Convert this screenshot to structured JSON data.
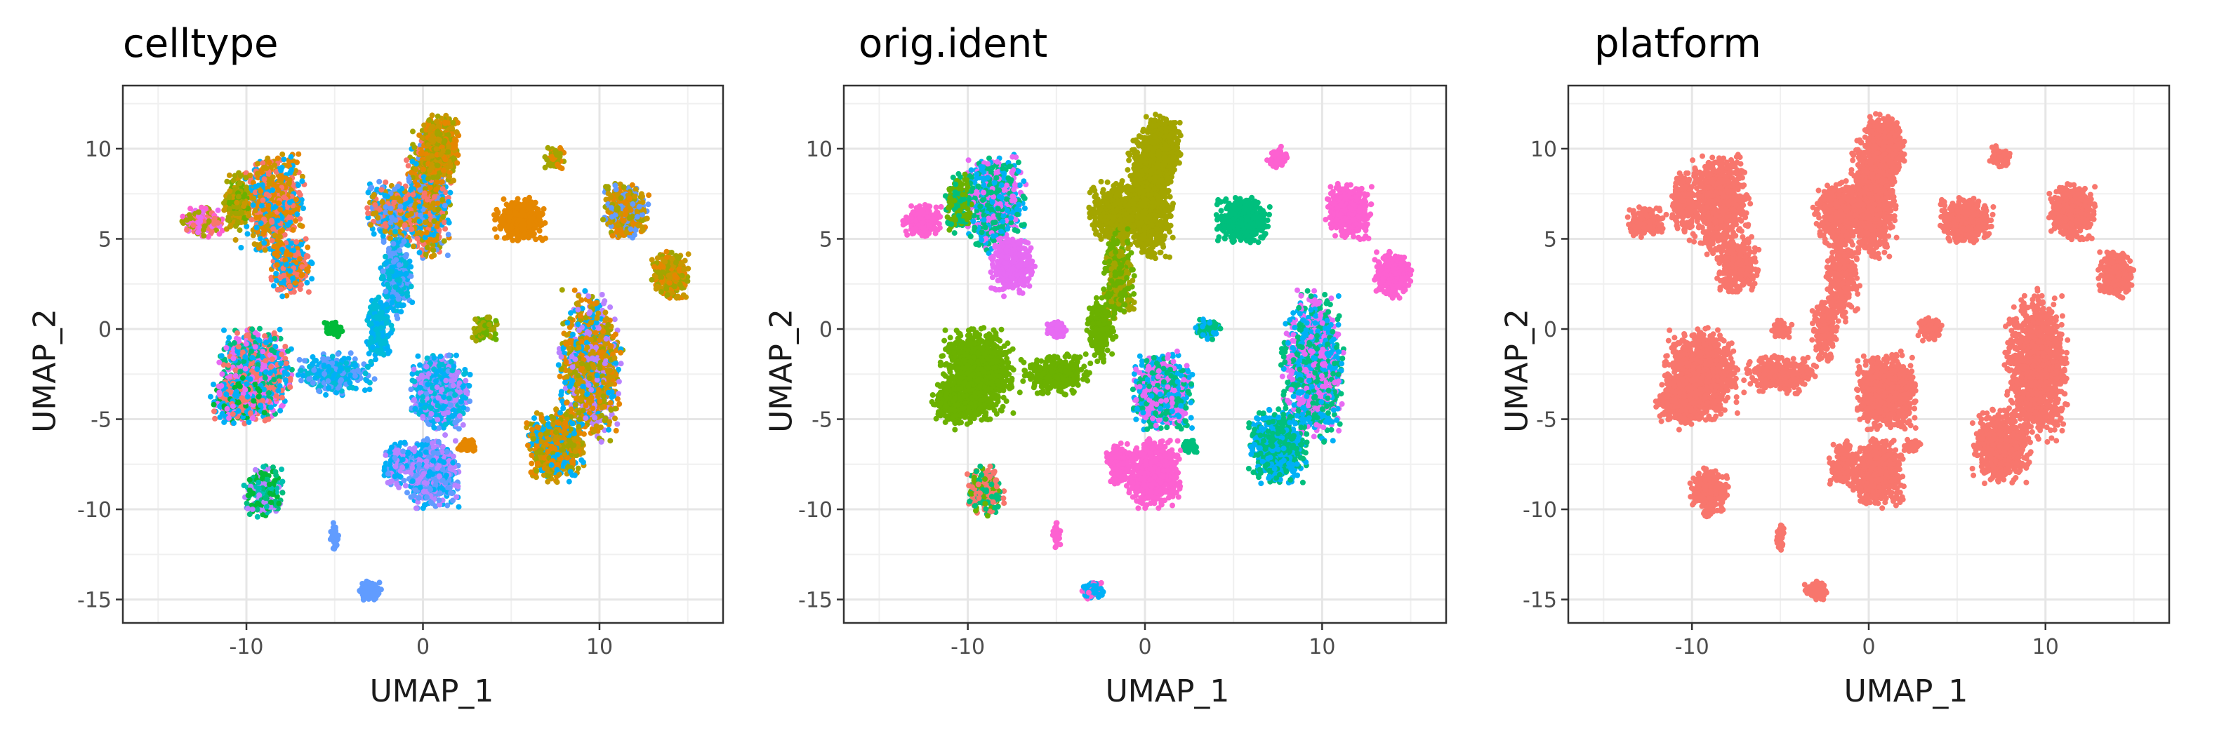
{
  "chart_data": [
    {
      "type": "scatter",
      "title": "celltype",
      "xlabel": "UMAP_1",
      "ylabel": "UMAP_2",
      "xlim": [
        -17,
        17
      ],
      "ylim": [
        -16.3,
        13.5
      ],
      "xticks": [
        -10,
        0,
        10
      ],
      "yticks": [
        -15,
        -10,
        -5,
        0,
        5,
        10
      ],
      "xtick_labels": [
        "-10",
        "0",
        "10"
      ],
      "ytick_labels": [
        "-15",
        "-10",
        "-5",
        "0",
        "5",
        "10"
      ],
      "grid": true,
      "legend": "none",
      "palette": [
        "#F8766D",
        "#E58700",
        "#C99800",
        "#A3A500",
        "#6BB100",
        "#00BA38",
        "#00BF7D",
        "#00C0AF",
        "#00BCD8",
        "#00B0F6",
        "#619CFF",
        "#B983FF",
        "#E76BF3",
        "#FD61D1"
      ],
      "clusters": [
        {
          "x": 0.3,
          "y": 7.5,
          "palette": [
            3,
            2,
            1,
            0,
            9,
            10
          ]
        },
        {
          "x": 1.0,
          "y": 10.0,
          "palette": [
            3,
            2,
            1
          ]
        },
        {
          "x": -1.5,
          "y": 6.5,
          "palette": [
            2,
            10,
            0,
            9
          ]
        },
        {
          "x": -1.5,
          "y": 3.0,
          "palette": [
            9,
            10,
            8
          ]
        },
        {
          "x": -2.5,
          "y": 0.0,
          "palette": [
            9,
            8
          ]
        },
        {
          "x": -5.0,
          "y": -2.5,
          "palette": [
            9,
            8,
            10
          ]
        },
        {
          "x": -8.5,
          "y": 7.0,
          "palette": [
            0,
            9,
            1,
            2
          ]
        },
        {
          "x": -7.5,
          "y": 3.5,
          "palette": [
            0,
            1,
            9
          ]
        },
        {
          "x": -9.5,
          "y": -2.5,
          "palette": [
            0,
            9,
            12,
            6
          ]
        },
        {
          "x": -10.5,
          "y": -4.0,
          "palette": [
            0,
            9,
            12,
            5
          ]
        },
        {
          "x": -12.5,
          "y": 6.0,
          "palette": [
            0,
            13,
            12,
            3
          ]
        },
        {
          "x": -10.5,
          "y": 7.0,
          "palette": [
            3,
            2,
            4
          ]
        },
        {
          "x": -9.0,
          "y": -9.0,
          "palette": [
            6,
            5,
            7,
            11
          ]
        },
        {
          "x": -5.0,
          "y": 0.0,
          "palette": [
            5
          ]
        },
        {
          "x": 1.0,
          "y": -3.5,
          "palette": [
            9,
            8,
            11,
            10
          ]
        },
        {
          "x": 3.5,
          "y": 0.0,
          "palette": [
            3,
            4
          ]
        },
        {
          "x": 0.5,
          "y": -8.0,
          "palette": [
            9,
            11,
            10
          ]
        },
        {
          "x": 2.5,
          "y": -6.5,
          "palette": [
            1
          ]
        },
        {
          "x": -1.5,
          "y": -7.5,
          "palette": [
            9,
            10,
            11
          ]
        },
        {
          "x": 5.5,
          "y": 6.0,
          "palette": [
            1
          ]
        },
        {
          "x": 7.5,
          "y": 9.5,
          "palette": [
            3,
            1
          ]
        },
        {
          "x": 11.5,
          "y": 6.5,
          "palette": [
            1,
            2,
            3,
            10
          ]
        },
        {
          "x": 14.0,
          "y": 3.0,
          "palette": [
            1,
            2,
            3
          ]
        },
        {
          "x": 9.5,
          "y": -2.0,
          "palette": [
            1,
            2,
            3,
            9,
            11
          ]
        },
        {
          "x": 7.5,
          "y": -6.5,
          "palette": [
            1,
            2,
            3,
            9
          ]
        },
        {
          "x": -3.0,
          "y": -14.5,
          "palette": [
            10
          ]
        },
        {
          "x": -5.0,
          "y": -11.5,
          "palette": [
            10
          ]
        }
      ]
    },
    {
      "type": "scatter",
      "title": "orig.ident",
      "xlabel": "UMAP_1",
      "ylabel": "UMAP_2",
      "xlim": [
        -17,
        17
      ],
      "ylim": [
        -16.3,
        13.5
      ],
      "xticks": [
        -10,
        0,
        10
      ],
      "yticks": [
        -15,
        -10,
        -5,
        0,
        5,
        10
      ],
      "xtick_labels": [
        "-10",
        "0",
        "10"
      ],
      "ytick_labels": [
        "-15",
        "-10",
        "-5",
        "0",
        "5",
        "10"
      ],
      "grid": true,
      "legend": "none",
      "palette": [
        "#F8766D",
        "#A3A500",
        "#00BF7D",
        "#00B0F6",
        "#E76BF3",
        "#FD61D1",
        "#6BB100"
      ],
      "clusters": [
        {
          "x": 0.3,
          "y": 7.5,
          "palette": [
            1
          ]
        },
        {
          "x": 1.0,
          "y": 10.0,
          "palette": [
            1
          ]
        },
        {
          "x": -1.5,
          "y": 6.5,
          "palette": [
            1
          ]
        },
        {
          "x": -1.5,
          "y": 3.0,
          "palette": [
            1,
            6
          ]
        },
        {
          "x": -2.5,
          "y": 0.0,
          "palette": [
            6
          ]
        },
        {
          "x": -5.0,
          "y": -2.5,
          "palette": [
            6
          ]
        },
        {
          "x": -8.5,
          "y": 7.0,
          "palette": [
            4,
            3,
            2
          ]
        },
        {
          "x": -7.5,
          "y": 3.5,
          "palette": [
            4
          ]
        },
        {
          "x": -9.5,
          "y": -2.5,
          "palette": [
            6
          ]
        },
        {
          "x": -10.5,
          "y": -4.0,
          "palette": [
            6
          ]
        },
        {
          "x": -12.5,
          "y": 6.0,
          "palette": [
            5
          ]
        },
        {
          "x": -10.5,
          "y": 7.0,
          "palette": [
            6,
            2
          ]
        },
        {
          "x": -9.0,
          "y": -9.0,
          "palette": [
            6,
            2,
            0
          ]
        },
        {
          "x": -5.0,
          "y": 0.0,
          "palette": [
            4
          ]
        },
        {
          "x": 1.0,
          "y": -3.5,
          "palette": [
            3,
            4,
            2
          ]
        },
        {
          "x": 3.5,
          "y": 0.0,
          "palette": [
            2,
            3
          ]
        },
        {
          "x": 0.5,
          "y": -8.0,
          "palette": [
            5
          ]
        },
        {
          "x": 2.5,
          "y": -6.5,
          "palette": [
            2
          ]
        },
        {
          "x": -1.5,
          "y": -7.5,
          "palette": [
            5
          ]
        },
        {
          "x": 5.5,
          "y": 6.0,
          "palette": [
            2
          ]
        },
        {
          "x": 7.5,
          "y": 9.5,
          "palette": [
            5
          ]
        },
        {
          "x": 11.5,
          "y": 6.5,
          "palette": [
            5
          ]
        },
        {
          "x": 14.0,
          "y": 3.0,
          "palette": [
            5
          ]
        },
        {
          "x": 9.5,
          "y": -2.0,
          "palette": [
            4,
            3,
            2
          ]
        },
        {
          "x": 7.5,
          "y": -6.5,
          "palette": [
            2,
            3
          ]
        },
        {
          "x": -3.0,
          "y": -14.5,
          "palette": [
            5,
            3
          ]
        },
        {
          "x": -5.0,
          "y": -11.5,
          "palette": [
            5
          ]
        }
      ]
    },
    {
      "type": "scatter",
      "title": "platform",
      "xlabel": "UMAP_1",
      "ylabel": "UMAP_2",
      "xlim": [
        -17,
        17
      ],
      "ylim": [
        -16.3,
        13.5
      ],
      "xticks": [
        -10,
        0,
        10
      ],
      "yticks": [
        -15,
        -10,
        -5,
        0,
        5,
        10
      ],
      "xtick_labels": [
        "-10",
        "0",
        "10"
      ],
      "ytick_labels": [
        "-15",
        "-10",
        "-5",
        "0",
        "5",
        "10"
      ],
      "grid": true,
      "legend": "none",
      "palette": [
        "#F8766D"
      ],
      "clusters": [
        {
          "x": 0.3,
          "y": 7.5,
          "palette": [
            0
          ]
        },
        {
          "x": 1.0,
          "y": 10.0,
          "palette": [
            0
          ]
        },
        {
          "x": -1.5,
          "y": 6.5,
          "palette": [
            0
          ]
        },
        {
          "x": -1.5,
          "y": 3.0,
          "palette": [
            0
          ]
        },
        {
          "x": -2.5,
          "y": 0.0,
          "palette": [
            0
          ]
        },
        {
          "x": -5.0,
          "y": -2.5,
          "palette": [
            0
          ]
        },
        {
          "x": -8.5,
          "y": 7.0,
          "palette": [
            0
          ]
        },
        {
          "x": -7.5,
          "y": 3.5,
          "palette": [
            0
          ]
        },
        {
          "x": -9.5,
          "y": -2.5,
          "palette": [
            0
          ]
        },
        {
          "x": -10.5,
          "y": -4.0,
          "palette": [
            0
          ]
        },
        {
          "x": -12.5,
          "y": 6.0,
          "palette": [
            0
          ]
        },
        {
          "x": -10.5,
          "y": 7.0,
          "palette": [
            0
          ]
        },
        {
          "x": -9.0,
          "y": -9.0,
          "palette": [
            0
          ]
        },
        {
          "x": -5.0,
          "y": 0.0,
          "palette": [
            0
          ]
        },
        {
          "x": 1.0,
          "y": -3.5,
          "palette": [
            0
          ]
        },
        {
          "x": 3.5,
          "y": 0.0,
          "palette": [
            0
          ]
        },
        {
          "x": 0.5,
          "y": -8.0,
          "palette": [
            0
          ]
        },
        {
          "x": 2.5,
          "y": -6.5,
          "palette": [
            0
          ]
        },
        {
          "x": -1.5,
          "y": -7.5,
          "palette": [
            0
          ]
        },
        {
          "x": 5.5,
          "y": 6.0,
          "palette": [
            0
          ]
        },
        {
          "x": 7.5,
          "y": 9.5,
          "palette": [
            0
          ]
        },
        {
          "x": 11.5,
          "y": 6.5,
          "palette": [
            0
          ]
        },
        {
          "x": 14.0,
          "y": 3.0,
          "palette": [
            0
          ]
        },
        {
          "x": 9.5,
          "y": -2.0,
          "palette": [
            0
          ]
        },
        {
          "x": 7.5,
          "y": -6.5,
          "palette": [
            0
          ]
        },
        {
          "x": -3.0,
          "y": -14.5,
          "palette": [
            0
          ]
        },
        {
          "x": -5.0,
          "y": -11.5,
          "palette": [
            0
          ]
        }
      ]
    }
  ]
}
